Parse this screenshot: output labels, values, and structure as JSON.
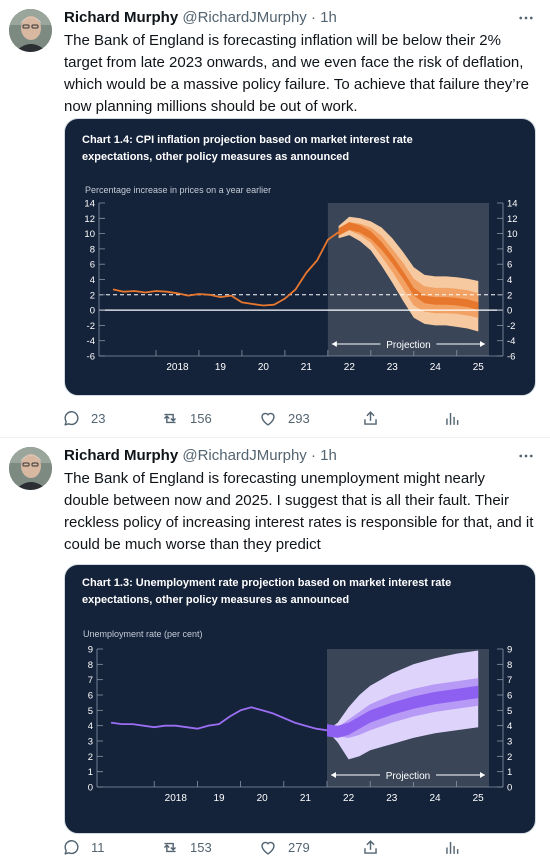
{
  "tweets": [
    {
      "author": {
        "name": "Richard Murphy",
        "handle": "@RichardJMurphy",
        "separator": "·",
        "time": "1h"
      },
      "text": "The Bank of England is forecasting inflation will be below their 2% target from late 2023 onwards, and we even face the risk of deflation, which would be a massive policy failure. To achieve that failure they’re now planning millions should be out of work.",
      "stats": {
        "replies": "23",
        "retweets": "156",
        "likes": "293"
      }
    },
    {
      "author": {
        "name": "Richard Murphy",
        "handle": "@RichardJMurphy",
        "separator": "·",
        "time": "1h"
      },
      "text": "The Bank of England is forecasting unemployment might nearly double between now and 2025. I suggest that is all their fault. Their reckless policy of increasing interest rates is responsible for that, and it could be much worse than they predict",
      "stats": {
        "replies": "11",
        "retweets": "153",
        "likes": "279"
      }
    }
  ],
  "icons": [
    "more-icon",
    "reply-icon",
    "retweet-icon",
    "like-icon",
    "share-icon",
    "analytics-icon"
  ],
  "colors": {
    "chart_bg": "#14223a",
    "projection_bg": "#3a4658",
    "inflation_line": "#e8772e",
    "unemployment_line": "#9b6ef3",
    "muted": "#536471"
  },
  "chart_data": [
    {
      "type": "line",
      "title": "Chart 1.4: CPI inflation projection based on market interest rate expectations, other policy measures as announced",
      "ylabel": "Percentage increase in prices on a year earlier",
      "ylim": [
        -6,
        14
      ],
      "yticks": [
        14,
        12,
        10,
        8,
        6,
        4,
        2,
        0,
        -2,
        -4,
        -6
      ],
      "xlim": [
        2017.0,
        2025.75
      ],
      "xticks": [
        {
          "label": "2018",
          "x": 2018.5
        },
        {
          "label": "19",
          "x": 2019.5
        },
        {
          "label": "20",
          "x": 2020.5
        },
        {
          "label": "21",
          "x": 2021.5
        },
        {
          "label": "22",
          "x": 2022.5
        },
        {
          "label": "23",
          "x": 2023.5
        },
        {
          "label": "24",
          "x": 2024.5
        },
        {
          "label": "25",
          "x": 2025.5
        }
      ],
      "target_line": 2,
      "projection_start": 2022.0,
      "projection_label": "Projection",
      "series": [
        {
          "x": [
            2017.0,
            2017.25,
            2017.5,
            2017.75,
            2018.0,
            2018.25,
            2018.5,
            2018.75,
            2019.0,
            2019.25,
            2019.5,
            2019.75,
            2020.0,
            2020.25,
            2020.5,
            2020.75,
            2021.0,
            2021.25,
            2021.5,
            2021.75,
            2022.0,
            2022.25
          ],
          "values": [
            2.7,
            2.4,
            2.5,
            2.3,
            2.5,
            2.4,
            2.2,
            1.9,
            2.1,
            2.0,
            1.7,
            1.9,
            1.0,
            0.8,
            0.6,
            0.7,
            1.5,
            2.7,
            4.9,
            6.5,
            9.2,
            10.2
          ]
        }
      ],
      "fan": {
        "x": [
          2022.25,
          2022.5,
          2022.75,
          2023.0,
          2023.25,
          2023.5,
          2023.75,
          2024.0,
          2024.25,
          2024.5,
          2024.75,
          2025.0,
          2025.25,
          2025.5
        ],
        "central": [
          10.2,
          11.0,
          10.6,
          9.8,
          8.4,
          6.6,
          4.6,
          2.4,
          1.4,
          1.2,
          1.2,
          1.1,
          0.9,
          0.5
        ],
        "inner_low": [
          9.8,
          10.4,
          9.8,
          8.8,
          7.0,
          5.0,
          2.8,
          0.6,
          -0.2,
          -0.4,
          -0.4,
          -0.5,
          -0.7,
          -1.0
        ],
        "inner_high": [
          10.6,
          11.5,
          11.3,
          10.8,
          9.7,
          8.0,
          6.2,
          4.1,
          3.1,
          2.9,
          2.9,
          2.8,
          2.6,
          2.2
        ],
        "outer_low": [
          9.4,
          9.8,
          9.0,
          7.8,
          5.8,
          3.6,
          1.2,
          -1.0,
          -1.8,
          -2.0,
          -2.0,
          -2.2,
          -2.4,
          -2.8
        ],
        "outer_high": [
          11.0,
          12.2,
          12.0,
          11.6,
          10.8,
          9.4,
          7.6,
          5.6,
          4.6,
          4.4,
          4.4,
          4.3,
          4.1,
          3.8
        ]
      }
    },
    {
      "type": "line",
      "title": "Chart 1.3: Unemployment rate projection based on market interest rate expectations, other policy measures as announced",
      "ylabel": "Unemployment rate (per cent)",
      "ylim": [
        0,
        9
      ],
      "yticks": [
        9,
        8,
        7,
        6,
        5,
        4,
        3,
        2,
        1,
        0
      ],
      "xlim": [
        2017.0,
        2025.75
      ],
      "xticks": [
        {
          "label": "2018",
          "x": 2018.5
        },
        {
          "label": "19",
          "x": 2019.5
        },
        {
          "label": "20",
          "x": 2020.5
        },
        {
          "label": "21",
          "x": 2021.5
        },
        {
          "label": "22",
          "x": 2022.5
        },
        {
          "label": "23",
          "x": 2023.5
        },
        {
          "label": "24",
          "x": 2024.5
        },
        {
          "label": "25",
          "x": 2025.5
        }
      ],
      "projection_start": 2022.0,
      "projection_label": "Projection",
      "series": [
        {
          "x": [
            2017.0,
            2017.25,
            2017.5,
            2017.75,
            2018.0,
            2018.25,
            2018.5,
            2018.75,
            2019.0,
            2019.25,
            2019.5,
            2019.75,
            2020.0,
            2020.25,
            2020.5,
            2020.75,
            2021.0,
            2021.25,
            2021.5,
            2021.75,
            2022.0
          ],
          "values": [
            4.2,
            4.1,
            4.1,
            4.0,
            3.9,
            4.0,
            4.0,
            3.9,
            3.8,
            4.0,
            4.1,
            4.6,
            5.0,
            5.2,
            5.0,
            4.8,
            4.5,
            4.2,
            4.0,
            3.8,
            3.7
          ]
        }
      ],
      "fan": {
        "x": [
          2022.0,
          2022.25,
          2022.5,
          2022.75,
          2023.0,
          2023.5,
          2024.0,
          2024.5,
          2025.0,
          2025.5
        ],
        "central": [
          3.7,
          3.6,
          3.8,
          4.2,
          4.6,
          5.1,
          5.5,
          5.8,
          6.0,
          6.2
        ],
        "inner_low": [
          3.7,
          3.3,
          3.2,
          3.4,
          3.7,
          4.2,
          4.6,
          4.9,
          5.1,
          5.3
        ],
        "inner_high": [
          3.7,
          3.9,
          4.4,
          4.9,
          5.4,
          6.0,
          6.4,
          6.7,
          6.9,
          7.1
        ],
        "outer_low": [
          3.7,
          2.9,
          1.8,
          2.0,
          2.4,
          2.8,
          3.2,
          3.5,
          3.7,
          3.9
        ],
        "outer_high": [
          3.7,
          4.2,
          5.2,
          6.0,
          6.6,
          7.4,
          8.0,
          8.4,
          8.7,
          8.9
        ]
      }
    }
  ]
}
